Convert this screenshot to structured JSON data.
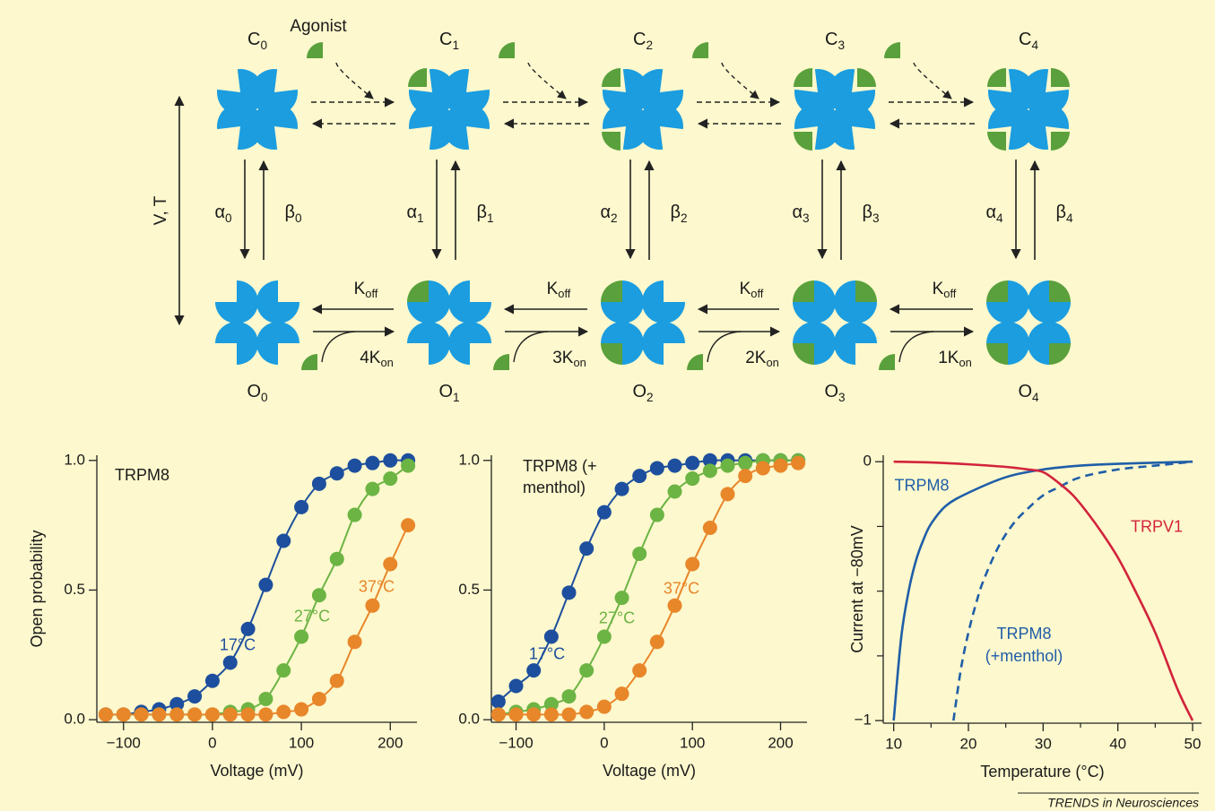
{
  "diagram": {
    "agonist_label": "Agonist",
    "axis_label": "V, T",
    "states": [
      {
        "closed": {
          "main": "C",
          "sub": "0"
        },
        "open": {
          "main": "O",
          "sub": "0"
        },
        "alpha": {
          "main": "α",
          "sub": "0"
        },
        "beta": {
          "main": "β",
          "sub": "0"
        }
      },
      {
        "closed": {
          "main": "C",
          "sub": "1"
        },
        "open": {
          "main": "O",
          "sub": "1"
        },
        "alpha": {
          "main": "α",
          "sub": "1"
        },
        "beta": {
          "main": "β",
          "sub": "1"
        }
      },
      {
        "closed": {
          "main": "C",
          "sub": "2"
        },
        "open": {
          "main": "O",
          "sub": "2"
        },
        "alpha": {
          "main": "α",
          "sub": "2"
        },
        "beta": {
          "main": "β",
          "sub": "2"
        }
      },
      {
        "closed": {
          "main": "C",
          "sub": "3"
        },
        "open": {
          "main": "O",
          "sub": "3"
        },
        "alpha": {
          "main": "α",
          "sub": "3"
        },
        "beta": {
          "main": "β",
          "sub": "3"
        }
      },
      {
        "closed": {
          "main": "C",
          "sub": "4"
        },
        "open": {
          "main": "O",
          "sub": "4"
        },
        "alpha": {
          "main": "α",
          "sub": "4"
        },
        "beta": {
          "main": "β",
          "sub": "4"
        }
      }
    ],
    "transitions": [
      {
        "k_off": {
          "main": "K",
          "sub": "off"
        },
        "k_on": {
          "main": "4K",
          "sub": "on"
        }
      },
      {
        "k_off": {
          "main": "K",
          "sub": "off"
        },
        "k_on": {
          "main": "3K",
          "sub": "on"
        }
      },
      {
        "k_off": {
          "main": "K",
          "sub": "off"
        },
        "k_on": {
          "main": "2K",
          "sub": "on"
        }
      },
      {
        "k_off": {
          "main": "K",
          "sub": "off"
        },
        "k_on": {
          "main": "1K",
          "sub": "on"
        }
      }
    ]
  },
  "chart_data": [
    {
      "type": "line",
      "title": "TRPM8",
      "xlabel": "Voltage (mV)",
      "ylabel": "Open probability",
      "markers": true,
      "x": [
        -120,
        -100,
        -80,
        -60,
        -40,
        -20,
        0,
        20,
        40,
        60,
        80,
        100,
        120,
        140,
        160,
        180,
        200,
        220
      ],
      "xlim": [
        -130,
        230
      ],
      "xticks": [
        {
          "value": -100,
          "label": "−100"
        },
        0,
        100,
        200
      ],
      "ylim": [
        -0.01,
        1.02
      ],
      "yticks": [
        {
          "value": 0,
          "label": "0.0"
        },
        {
          "value": 0.5,
          "label": "0.5"
        },
        {
          "value": 1,
          "label": "1.0"
        }
      ],
      "series": [
        {
          "name": "17°C",
          "color": "#1d4f9e",
          "values": [
            0.02,
            0.02,
            0.03,
            0.04,
            0.06,
            0.09,
            0.15,
            0.22,
            0.35,
            0.52,
            0.69,
            0.82,
            0.91,
            0.95,
            0.98,
            0.99,
            1.0,
            1.0
          ]
        },
        {
          "name": "27°C",
          "color": "#6cb444",
          "values": [
            0.02,
            0.02,
            0.02,
            0.02,
            0.02,
            0.02,
            0.02,
            0.03,
            0.04,
            0.08,
            0.19,
            0.32,
            0.48,
            0.62,
            0.79,
            0.89,
            0.93,
            0.98
          ]
        },
        {
          "name": "37°C",
          "color": "#e8862a",
          "values": [
            0.02,
            0.02,
            0.02,
            0.02,
            0.02,
            0.02,
            0.02,
            0.02,
            0.02,
            0.02,
            0.03,
            0.04,
            0.08,
            0.15,
            0.3,
            0.44,
            0.6,
            0.75
          ]
        }
      ]
    },
    {
      "type": "line",
      "title": "TRPM8 (+ menthol)",
      "xlabel": "Voltage (mV)",
      "markers": true,
      "x": [
        -120,
        -100,
        -80,
        -60,
        -40,
        -20,
        0,
        20,
        40,
        60,
        80,
        100,
        120,
        140,
        160,
        180,
        200,
        220
      ],
      "xlim": [
        -128,
        230
      ],
      "xticks": [
        {
          "value": -100,
          "label": "−100"
        },
        0,
        100,
        200
      ],
      "ylim": [
        -0.01,
        1.02
      ],
      "yticks": [
        {
          "value": 0,
          "label": "0.0"
        },
        {
          "value": 0.5,
          "label": "0.5"
        },
        {
          "value": 1,
          "label": "1.0"
        }
      ],
      "series": [
        {
          "name": "17°C",
          "color": "#1d4f9e",
          "values": [
            0.07,
            0.13,
            0.19,
            0.32,
            0.49,
            0.66,
            0.8,
            0.89,
            0.94,
            0.97,
            0.98,
            0.99,
            1.0,
            1.0,
            1.0,
            1.0,
            1.0,
            1.0
          ]
        },
        {
          "name": "27°C",
          "color": "#6cb444",
          "values": [
            0.02,
            0.03,
            0.04,
            0.06,
            0.09,
            0.19,
            0.32,
            0.47,
            0.64,
            0.79,
            0.88,
            0.93,
            0.96,
            0.98,
            0.99,
            1.0,
            1.0,
            1.0
          ]
        },
        {
          "name": "37°C",
          "color": "#e8862a",
          "values": [
            0.02,
            0.02,
            0.02,
            0.02,
            0.02,
            0.03,
            0.05,
            0.1,
            0.19,
            0.3,
            0.44,
            0.6,
            0.74,
            0.87,
            0.94,
            0.97,
            0.98,
            0.99
          ]
        }
      ]
    },
    {
      "type": "line",
      "xlabel": "Temperature (°C)",
      "ylabel": "Current at −80mV",
      "markers": false,
      "xlim": [
        8.6,
        51.2
      ],
      "xticks": [
        10,
        20,
        30,
        40,
        50
      ],
      "xminor": [
        15,
        25,
        35,
        45
      ],
      "ylim": [
        -1.01,
        0.025
      ],
      "yticks": [
        {
          "value": -1,
          "label": "−1"
        },
        0
      ],
      "yminor": [
        -0.75,
        -0.5,
        -0.25
      ],
      "series": [
        {
          "name": "TRPM8",
          "color": "#1f5ea8",
          "dash": false,
          "x": [
            10,
            11,
            12,
            13,
            14,
            15,
            17,
            20,
            25,
            30,
            35,
            40,
            50
          ],
          "values": [
            -1,
            -0.68,
            -0.5,
            -0.38,
            -0.3,
            -0.24,
            -0.17,
            -0.12,
            -0.06,
            -0.03,
            -0.015,
            -0.008,
            0
          ]
        },
        {
          "name": "TRPM8 (+menthol)",
          "color": "#1f5ea8",
          "dash": true,
          "x": [
            18,
            19,
            20,
            21,
            22,
            24,
            26,
            28,
            30,
            32,
            35,
            40,
            45,
            50
          ],
          "values": [
            -1,
            -0.8,
            -0.66,
            -0.55,
            -0.46,
            -0.33,
            -0.24,
            -0.18,
            -0.13,
            -0.1,
            -0.06,
            -0.03,
            -0.015,
            0
          ]
        },
        {
          "name": "TRPV1",
          "color": "#d2233c",
          "dash": false,
          "x": [
            10,
            15,
            20,
            25,
            28,
            30,
            32,
            34,
            36,
            38,
            40,
            42,
            45,
            48,
            50
          ],
          "values": [
            0,
            -0.003,
            -0.01,
            -0.02,
            -0.03,
            -0.04,
            -0.08,
            -0.13,
            -0.2,
            -0.28,
            -0.37,
            -0.48,
            -0.66,
            -0.88,
            -1
          ]
        }
      ]
    }
  ],
  "credit": "TRENDS in Neurosciences"
}
